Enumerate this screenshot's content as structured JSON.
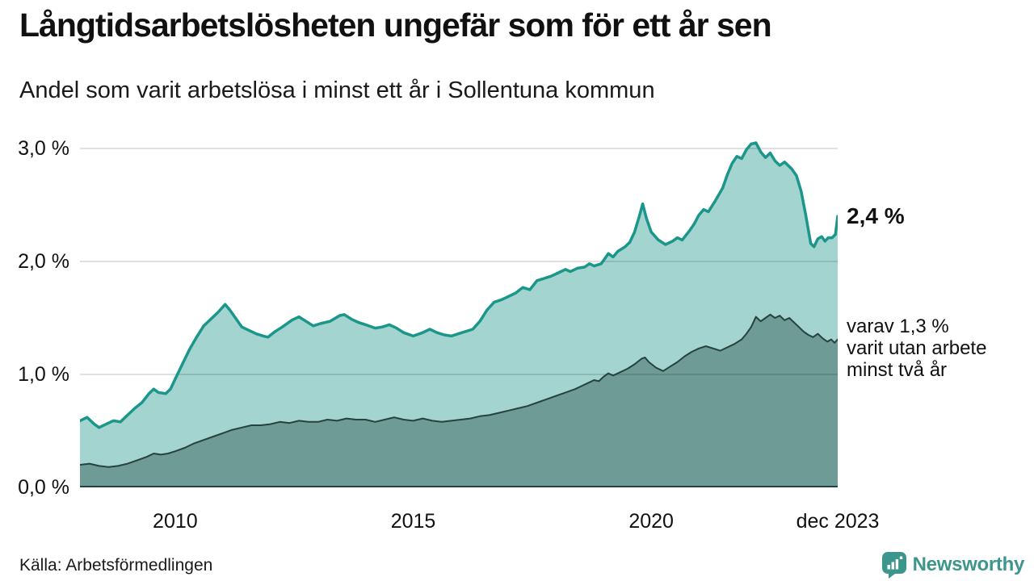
{
  "header": {
    "title": "Långtidsarbetslösheten ungefär som för ett år sen",
    "subtitle": "Andel som varit arbetslösa i minst ett år i Sollentuna kommun"
  },
  "annotations": {
    "latest_value": "2,4 %",
    "secondary": "varav 1,3 %\nvarit utan arbete\nminst två år"
  },
  "footer": {
    "source": "Källa: Arbetsförmedlingen",
    "brand": "Newsworthy"
  },
  "colors": {
    "line_primary": "#1b968a",
    "fill_primary": "#a3d4cf",
    "line_secondary": "#25423e",
    "fill_secondary": "#6f9b96",
    "gridline": "rgba(0,0,0,0.12)",
    "baseline": "#25423e",
    "brand_teal": "#3c968c",
    "text": "#111111"
  },
  "chart_data": {
    "type": "area",
    "title": "Långtidsarbetslösheten ungefär som för ett år sen",
    "xlabel": "",
    "ylabel": "Andel som varit arbetslösa i minst ett år (%)",
    "grid": true,
    "legend_position": "annotated-right",
    "xlim": [
      2008.0,
      2023.917
    ],
    "ylim": [
      0.0,
      3.1
    ],
    "x_ticks": [
      {
        "label": "2010",
        "t": 2010.0
      },
      {
        "label": "2015",
        "t": 2015.0
      },
      {
        "label": "2020",
        "t": 2020.0
      },
      {
        "label": "dec 2023",
        "t": 2023.917
      }
    ],
    "y_ticks": [
      {
        "label": "0,0 %",
        "v": 0.0
      },
      {
        "label": "1,0 %",
        "v": 1.0
      },
      {
        "label": "2,0 %",
        "v": 2.0
      },
      {
        "label": "3,0 %",
        "v": 3.0
      }
    ],
    "series": [
      {
        "name": "Andel arbetslösa minst ett år",
        "latest_label": "2,4 %",
        "latest_value": 2.4,
        "line_color": "#1b968a",
        "fill_color": "#a3d4cf",
        "line_width": 3.5,
        "points": [
          [
            2008.0,
            0.59
          ],
          [
            2008.15,
            0.62
          ],
          [
            2008.3,
            0.56
          ],
          [
            2008.4,
            0.53
          ],
          [
            2008.55,
            0.56
          ],
          [
            2008.7,
            0.59
          ],
          [
            2008.85,
            0.58
          ],
          [
            2009.0,
            0.64
          ],
          [
            2009.15,
            0.7
          ],
          [
            2009.3,
            0.75
          ],
          [
            2009.45,
            0.83
          ],
          [
            2009.55,
            0.87
          ],
          [
            2009.65,
            0.84
          ],
          [
            2009.8,
            0.83
          ],
          [
            2009.9,
            0.87
          ],
          [
            2010.0,
            0.96
          ],
          [
            2010.15,
            1.09
          ],
          [
            2010.3,
            1.22
          ],
          [
            2010.45,
            1.33
          ],
          [
            2010.6,
            1.43
          ],
          [
            2010.75,
            1.49
          ],
          [
            2010.9,
            1.55
          ],
          [
            2011.05,
            1.62
          ],
          [
            2011.15,
            1.57
          ],
          [
            2011.25,
            1.51
          ],
          [
            2011.4,
            1.42
          ],
          [
            2011.55,
            1.39
          ],
          [
            2011.7,
            1.36
          ],
          [
            2011.85,
            1.34
          ],
          [
            2011.95,
            1.33
          ],
          [
            2012.1,
            1.38
          ],
          [
            2012.25,
            1.42
          ],
          [
            2012.45,
            1.48
          ],
          [
            2012.6,
            1.51
          ],
          [
            2012.75,
            1.47
          ],
          [
            2012.9,
            1.43
          ],
          [
            2013.05,
            1.45
          ],
          [
            2013.25,
            1.47
          ],
          [
            2013.45,
            1.52
          ],
          [
            2013.55,
            1.53
          ],
          [
            2013.7,
            1.49
          ],
          [
            2013.85,
            1.46
          ],
          [
            2014.0,
            1.44
          ],
          [
            2014.2,
            1.41
          ],
          [
            2014.35,
            1.42
          ],
          [
            2014.5,
            1.44
          ],
          [
            2014.65,
            1.41
          ],
          [
            2014.8,
            1.37
          ],
          [
            2015.0,
            1.34
          ],
          [
            2015.2,
            1.37
          ],
          [
            2015.35,
            1.4
          ],
          [
            2015.5,
            1.37
          ],
          [
            2015.65,
            1.35
          ],
          [
            2015.8,
            1.34
          ],
          [
            2015.95,
            1.36
          ],
          [
            2016.1,
            1.38
          ],
          [
            2016.25,
            1.4
          ],
          [
            2016.4,
            1.47
          ],
          [
            2016.55,
            1.57
          ],
          [
            2016.7,
            1.64
          ],
          [
            2016.85,
            1.66
          ],
          [
            2017.0,
            1.69
          ],
          [
            2017.15,
            1.72
          ],
          [
            2017.3,
            1.77
          ],
          [
            2017.45,
            1.75
          ],
          [
            2017.6,
            1.83
          ],
          [
            2017.75,
            1.85
          ],
          [
            2017.9,
            1.87
          ],
          [
            2018.05,
            1.9
          ],
          [
            2018.2,
            1.93
          ],
          [
            2018.3,
            1.91
          ],
          [
            2018.45,
            1.94
          ],
          [
            2018.6,
            1.95
          ],
          [
            2018.7,
            1.98
          ],
          [
            2018.8,
            1.96
          ],
          [
            2018.95,
            1.98
          ],
          [
            2019.1,
            2.07
          ],
          [
            2019.2,
            2.04
          ],
          [
            2019.3,
            2.09
          ],
          [
            2019.45,
            2.13
          ],
          [
            2019.55,
            2.17
          ],
          [
            2019.65,
            2.26
          ],
          [
            2019.75,
            2.4
          ],
          [
            2019.82,
            2.51
          ],
          [
            2019.9,
            2.38
          ],
          [
            2020.0,
            2.26
          ],
          [
            2020.15,
            2.19
          ],
          [
            2020.3,
            2.15
          ],
          [
            2020.45,
            2.18
          ],
          [
            2020.55,
            2.21
          ],
          [
            2020.65,
            2.19
          ],
          [
            2020.8,
            2.27
          ],
          [
            2020.9,
            2.33
          ],
          [
            2021.0,
            2.41
          ],
          [
            2021.1,
            2.46
          ],
          [
            2021.2,
            2.44
          ],
          [
            2021.35,
            2.54
          ],
          [
            2021.5,
            2.65
          ],
          [
            2021.6,
            2.77
          ],
          [
            2021.7,
            2.87
          ],
          [
            2021.8,
            2.93
          ],
          [
            2021.9,
            2.91
          ],
          [
            2022.0,
            2.99
          ],
          [
            2022.1,
            3.04
          ],
          [
            2022.2,
            3.05
          ],
          [
            2022.3,
            2.97
          ],
          [
            2022.4,
            2.92
          ],
          [
            2022.5,
            2.96
          ],
          [
            2022.6,
            2.89
          ],
          [
            2022.7,
            2.85
          ],
          [
            2022.8,
            2.88
          ],
          [
            2022.95,
            2.82
          ],
          [
            2023.05,
            2.76
          ],
          [
            2023.15,
            2.62
          ],
          [
            2023.25,
            2.4
          ],
          [
            2023.35,
            2.16
          ],
          [
            2023.42,
            2.13
          ],
          [
            2023.5,
            2.2
          ],
          [
            2023.58,
            2.22
          ],
          [
            2023.65,
            2.18
          ],
          [
            2023.72,
            2.21
          ],
          [
            2023.8,
            2.21
          ],
          [
            2023.87,
            2.24
          ],
          [
            2023.917,
            2.4
          ]
        ]
      },
      {
        "name": "varav arbetslösa minst två år",
        "latest_label": "varav 1,3 %",
        "latest_value": 1.3,
        "line_color": "#25423e",
        "fill_color": "#6f9b96",
        "line_width": 2,
        "points": [
          [
            2008.0,
            0.2
          ],
          [
            2008.2,
            0.21
          ],
          [
            2008.4,
            0.19
          ],
          [
            2008.6,
            0.18
          ],
          [
            2008.8,
            0.19
          ],
          [
            2009.0,
            0.21
          ],
          [
            2009.2,
            0.24
          ],
          [
            2009.4,
            0.27
          ],
          [
            2009.55,
            0.3
          ],
          [
            2009.7,
            0.29
          ],
          [
            2009.85,
            0.3
          ],
          [
            2010.0,
            0.32
          ],
          [
            2010.2,
            0.35
          ],
          [
            2010.4,
            0.39
          ],
          [
            2010.6,
            0.42
          ],
          [
            2010.8,
            0.45
          ],
          [
            2011.0,
            0.48
          ],
          [
            2011.2,
            0.51
          ],
          [
            2011.4,
            0.53
          ],
          [
            2011.6,
            0.55
          ],
          [
            2011.8,
            0.55
          ],
          [
            2012.0,
            0.56
          ],
          [
            2012.2,
            0.58
          ],
          [
            2012.4,
            0.57
          ],
          [
            2012.6,
            0.59
          ],
          [
            2012.8,
            0.58
          ],
          [
            2013.0,
            0.58
          ],
          [
            2013.2,
            0.6
          ],
          [
            2013.4,
            0.59
          ],
          [
            2013.6,
            0.61
          ],
          [
            2013.8,
            0.6
          ],
          [
            2014.0,
            0.6
          ],
          [
            2014.2,
            0.58
          ],
          [
            2014.4,
            0.6
          ],
          [
            2014.6,
            0.62
          ],
          [
            2014.8,
            0.6
          ],
          [
            2015.0,
            0.59
          ],
          [
            2015.2,
            0.61
          ],
          [
            2015.4,
            0.59
          ],
          [
            2015.6,
            0.58
          ],
          [
            2015.8,
            0.59
          ],
          [
            2016.0,
            0.6
          ],
          [
            2016.2,
            0.61
          ],
          [
            2016.4,
            0.63
          ],
          [
            2016.6,
            0.64
          ],
          [
            2016.8,
            0.66
          ],
          [
            2017.0,
            0.68
          ],
          [
            2017.2,
            0.7
          ],
          [
            2017.4,
            0.72
          ],
          [
            2017.6,
            0.75
          ],
          [
            2017.8,
            0.78
          ],
          [
            2018.0,
            0.81
          ],
          [
            2018.2,
            0.84
          ],
          [
            2018.4,
            0.87
          ],
          [
            2018.55,
            0.9
          ],
          [
            2018.7,
            0.93
          ],
          [
            2018.8,
            0.95
          ],
          [
            2018.9,
            0.94
          ],
          [
            2019.0,
            0.98
          ],
          [
            2019.1,
            1.01
          ],
          [
            2019.2,
            0.99
          ],
          [
            2019.35,
            1.02
          ],
          [
            2019.5,
            1.05
          ],
          [
            2019.65,
            1.09
          ],
          [
            2019.8,
            1.14
          ],
          [
            2019.87,
            1.15
          ],
          [
            2019.95,
            1.11
          ],
          [
            2020.1,
            1.06
          ],
          [
            2020.25,
            1.03
          ],
          [
            2020.4,
            1.07
          ],
          [
            2020.55,
            1.11
          ],
          [
            2020.7,
            1.16
          ],
          [
            2020.85,
            1.2
          ],
          [
            2021.0,
            1.23
          ],
          [
            2021.15,
            1.25
          ],
          [
            2021.3,
            1.23
          ],
          [
            2021.45,
            1.21
          ],
          [
            2021.6,
            1.24
          ],
          [
            2021.75,
            1.27
          ],
          [
            2021.9,
            1.31
          ],
          [
            2022.0,
            1.36
          ],
          [
            2022.1,
            1.42
          ],
          [
            2022.2,
            1.51
          ],
          [
            2022.3,
            1.47
          ],
          [
            2022.4,
            1.5
          ],
          [
            2022.5,
            1.53
          ],
          [
            2022.6,
            1.5
          ],
          [
            2022.7,
            1.52
          ],
          [
            2022.8,
            1.48
          ],
          [
            2022.9,
            1.5
          ],
          [
            2023.0,
            1.46
          ],
          [
            2023.1,
            1.42
          ],
          [
            2023.2,
            1.38
          ],
          [
            2023.3,
            1.35
          ],
          [
            2023.4,
            1.33
          ],
          [
            2023.5,
            1.36
          ],
          [
            2023.6,
            1.32
          ],
          [
            2023.7,
            1.29
          ],
          [
            2023.78,
            1.31
          ],
          [
            2023.85,
            1.28
          ],
          [
            2023.917,
            1.31
          ]
        ]
      }
    ]
  }
}
